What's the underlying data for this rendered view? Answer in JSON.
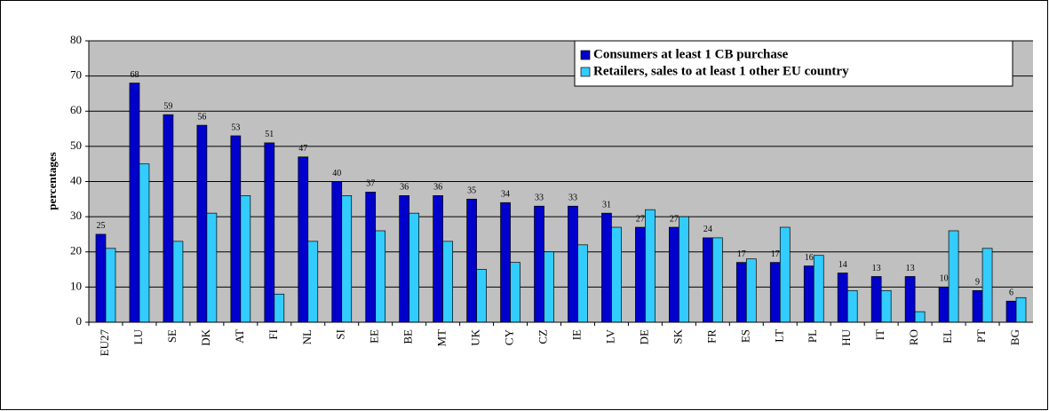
{
  "chart_data": {
    "type": "bar",
    "y_label": "percentages",
    "categories": [
      "EU27",
      "LU",
      "SE",
      "DK",
      "AT",
      "FI",
      "NL",
      "SI",
      "EE",
      "BE",
      "MT",
      "UK",
      "CY",
      "CZ",
      "IE",
      "LV",
      "DE",
      "SK",
      "FR",
      "ES",
      "LT",
      "PL",
      "HU",
      "IT",
      "RO",
      "EL",
      "PT",
      "BG"
    ],
    "series": [
      {
        "name": "Consumers at least 1 CB purchase",
        "color": "#0000cc",
        "data_labels": true,
        "values": [
          25,
          68,
          59,
          56,
          53,
          51,
          47,
          40,
          37,
          36,
          36,
          35,
          34,
          33,
          33,
          31,
          27,
          27,
          24,
          17,
          17,
          16,
          14,
          13,
          13,
          10,
          9,
          6
        ]
      },
      {
        "name": "Retailers, sales to at least 1 other EU country",
        "color": "#33ccff",
        "data_labels": false,
        "values": [
          21,
          45,
          23,
          31,
          36,
          8,
          23,
          36,
          26,
          31,
          23,
          15,
          17,
          20,
          22,
          27,
          32,
          30,
          24,
          18,
          27,
          19,
          9,
          9,
          3,
          26,
          21,
          7
        ]
      }
    ],
    "ylim": [
      0,
      80
    ],
    "yticks": [
      0,
      10,
      20,
      30,
      40,
      50,
      60,
      70,
      80
    ],
    "grid": true,
    "legend": "upper right"
  }
}
